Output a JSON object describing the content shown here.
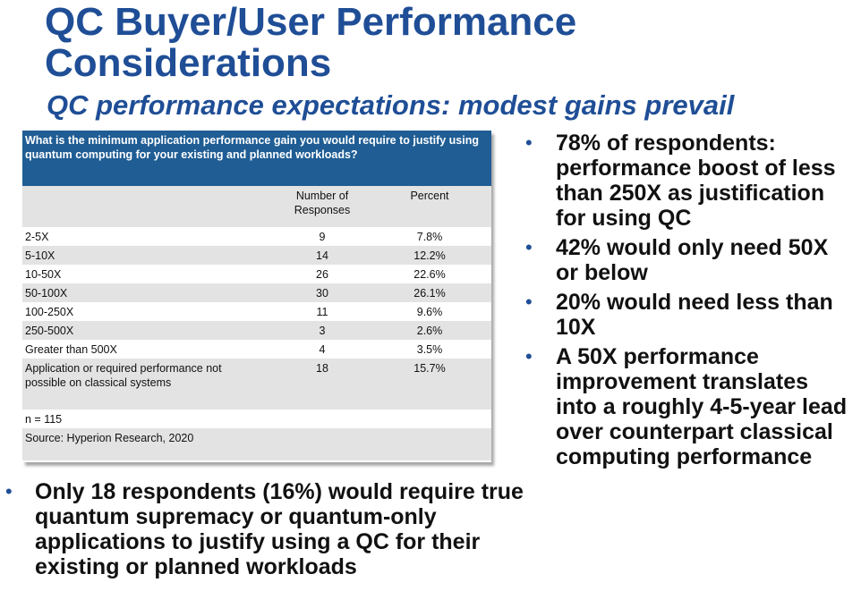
{
  "slide": {
    "title": "QC Buyer/User Performance Considerations",
    "subtitle": "QC performance expectations: modest gains prevail"
  },
  "table": {
    "question": "What is the minimum application performance gain you would require to justify using quantum computing for your existing and planned workloads?",
    "col_responses": "Number of Responses",
    "col_percent": "Percent",
    "rows": [
      {
        "label": "2-5X",
        "count": "9",
        "percent": "7.8%"
      },
      {
        "label": "5-10X",
        "count": "14",
        "percent": "12.2%"
      },
      {
        "label": "10-50X",
        "count": "26",
        "percent": "22.6%"
      },
      {
        "label": "50-100X",
        "count": "30",
        "percent": "26.1%"
      },
      {
        "label": "100-250X",
        "count": "11",
        "percent": "9.6%"
      },
      {
        "label": "250-500X",
        "count": "3",
        "percent": "2.6%"
      },
      {
        "label": "Greater than 500X",
        "count": "4",
        "percent": "3.5%"
      },
      {
        "label": "Application or required performance not possible on classical systems",
        "count": "18",
        "percent": "15.7%"
      }
    ],
    "n": "n = 115",
    "source": "Source: Hyperion Research, 2020"
  },
  "right_bullets": [
    "78% of respondents: performance boost of less than 250X as justification for using QC",
    "42% would only need 50X or below",
    "20% would need less than 10X",
    "A 50X performance improvement translates into a roughly 4-5-year lead over counterpart classical computing performance"
  ],
  "bottom_bullet": "Only 18 respondents (16%) would require true quantum supremacy or quantum-only applications to justify using a QC for their existing or planned workloads",
  "bullet_symbol": "•",
  "colors": {
    "title": "#1f4e96",
    "table_header": "#1f5d94",
    "row_grey": "#e3e3e3"
  }
}
